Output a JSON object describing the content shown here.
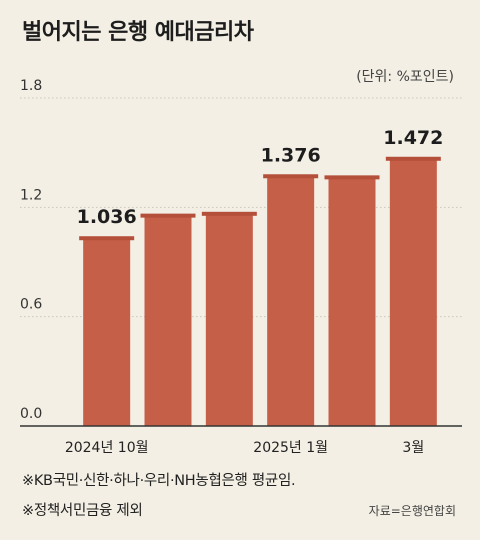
{
  "title": "벌어지는 은행 예대금리차",
  "unit": "(단위: %포인트)",
  "notes": [
    "※KB국민·신한·하나·우리·NH농협은행 평균임.",
    "※정책서민금융 제외"
  ],
  "source": "자료=은행연합회",
  "chart_data": {
    "type": "bar",
    "categories": [
      "2024년 10월",
      "",
      "",
      "2025년 1월",
      "",
      "3월"
    ],
    "values": [
      1.036,
      1.16,
      1.17,
      1.376,
      1.37,
      1.472
    ],
    "data_labels": [
      "1.036",
      "",
      "",
      "1.376",
      "",
      "1.472"
    ],
    "yticks": [
      "0.0",
      "0.6",
      "1.2",
      "1.8"
    ],
    "ylim": [
      0,
      1.8
    ],
    "grid": true,
    "colors": {
      "bar": "#c65f48",
      "bar_cap": "#b44f3a",
      "grid": "#c9c5bb",
      "axis": "#333333"
    }
  }
}
